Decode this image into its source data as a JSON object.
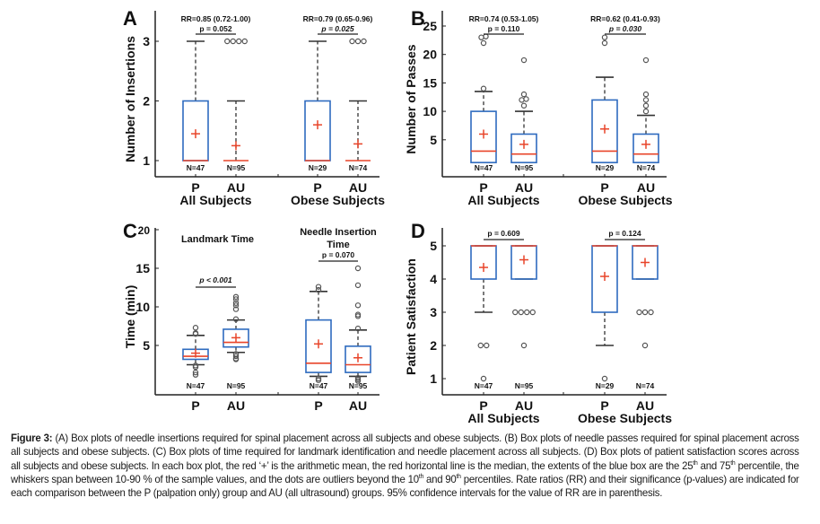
{
  "figure": {
    "caption_label": "Figure 3:",
    "caption_parts": [
      " (A) Box plots of needle insertions required for spinal placement across all subjects and obese subjects. (B) Box plots of needle passes required for spinal placement across all subjects and obese subjects. (C) Box plots of time required for landmark identification and needle placement across all subjects. (D) Box plots of patient satisfaction scores across all subjects and obese subjects. In each box plot, the red ‘+’ is the arithmetic mean, the red horizontal line is the median, the extents of the blue box are the 25",
      "th",
      " and 75",
      "th",
      " percentile, the whiskers span between 10-90 % of the sample values, and the dots are outliers beyond the 10",
      "th",
      " and 90",
      "th",
      " percentiles. Rate ratios (RR) and their significance (p-values) are indicated for each comparison between the P (palpation only) group and AU (all ultrasound) groups. 95% confidence intervals for the value of RR are in parenthesis."
    ]
  },
  "colors": {
    "box": "#2e6bbf",
    "median": "#e8452a",
    "mean": "#e8452a",
    "whisker": "#333333",
    "outlier": "#555555",
    "axis": "#222222",
    "text": "#111111"
  },
  "chart_data": [
    {
      "panel": "A",
      "type": "box",
      "ylabel": "Number of Insertions",
      "yticks": [
        1,
        2,
        3
      ],
      "ylim": [
        0.9,
        3.45
      ],
      "group_labels": [
        "All Subjects",
        "Obese Subjects"
      ],
      "boxes": [
        {
          "label": "P",
          "group": "All Subjects",
          "n": "N=47",
          "q1": 1,
          "median": 1,
          "q3": 2,
          "mean": 1.45,
          "whisker_low": 1,
          "whisker_high": 3,
          "outliers": []
        },
        {
          "label": "AU",
          "group": "All Subjects",
          "n": "N=95",
          "q1": 1,
          "median": 1,
          "q3": 1,
          "mean": 1.25,
          "whisker_low": 1,
          "whisker_high": 2,
          "outliers": [
            3,
            3,
            3,
            3
          ],
          "outlier_layout": "row"
        },
        {
          "label": "P",
          "group": "Obese Subjects",
          "n": "N=29",
          "q1": 1,
          "median": 1,
          "q3": 2,
          "mean": 1.6,
          "whisker_low": 1,
          "whisker_high": 3,
          "outliers": []
        },
        {
          "label": "AU",
          "group": "Obese Subjects",
          "n": "N=74",
          "q1": 1,
          "median": 1,
          "q3": 1,
          "mean": 1.28,
          "whisker_low": 1,
          "whisker_high": 2,
          "outliers": [
            3,
            3,
            3
          ],
          "outlier_layout": "row"
        }
      ],
      "annotations": [
        {
          "pair": [
            0,
            1
          ],
          "rr": "RR=0.85 (0.72-1.00)",
          "p": "p  = 0.052",
          "p_italic": false
        },
        {
          "pair": [
            2,
            3
          ],
          "rr": "RR=0.79 (0.65-0.96)",
          "p": "p = 0.025",
          "p_italic": true
        }
      ]
    },
    {
      "panel": "B",
      "type": "box",
      "ylabel": "Number of Passes",
      "yticks": [
        5,
        10,
        15,
        20,
        25
      ],
      "ylim": [
        -1,
        27.5
      ],
      "group_labels": [
        "All Subjects",
        "Obese Subjects"
      ],
      "boxes": [
        {
          "label": "P",
          "group": "All Subjects",
          "n": "N=47",
          "q1": 1,
          "median": 3,
          "q3": 10,
          "mean": 6,
          "whisker_low": 1,
          "whisker_high": 13.5,
          "outliers": [
            14,
            22,
            23,
            23
          ]
        },
        {
          "label": "AU",
          "group": "All Subjects",
          "n": "N=95",
          "q1": 1,
          "median": 2.5,
          "q3": 6,
          "mean": 4.2,
          "whisker_low": 1,
          "whisker_high": 10,
          "outliers": [
            11,
            12,
            12,
            13,
            19
          ]
        },
        {
          "label": "P",
          "group": "Obese Subjects",
          "n": "N=29",
          "q1": 1,
          "median": 3,
          "q3": 12,
          "mean": 6.9,
          "whisker_low": 1,
          "whisker_high": 16,
          "outliers": [
            22,
            23
          ]
        },
        {
          "label": "AU",
          "group": "Obese Subjects",
          "n": "N=74",
          "q1": 1,
          "median": 2.5,
          "q3": 6,
          "mean": 4.2,
          "whisker_low": 1,
          "whisker_high": 9.3,
          "outliers": [
            10,
            11,
            12,
            13,
            19
          ]
        }
      ],
      "annotations": [
        {
          "pair": [
            0,
            1
          ],
          "rr": "RR=0.74 (0.53-1.05)",
          "p": "p  = 0.110",
          "p_italic": false
        },
        {
          "pair": [
            2,
            3
          ],
          "rr": "RR=0.62 (0.41-0.93)",
          "p": "p = 0.030",
          "p_italic": true
        }
      ]
    },
    {
      "panel": "C",
      "type": "box",
      "ylabel": "Time (min)",
      "yticks": [
        5,
        10,
        15,
        20
      ],
      "ylim": [
        -2.2,
        20
      ],
      "group_labels": [
        "",
        ""
      ],
      "subtitles": [
        "Landmark Time",
        "Needle Insertion\nTime"
      ],
      "boxes": [
        {
          "label": "P",
          "group": "Landmark Time",
          "n": "N=47",
          "q1": 3.2,
          "median": 3.6,
          "q3": 4.5,
          "mean": 4.0,
          "whisker_low": 2.5,
          "whisker_high": 6.3,
          "outliers": [
            1.2,
            1.5,
            2.2,
            2.4,
            6.5,
            6.6,
            7.3
          ]
        },
        {
          "label": "AU",
          "group": "Landmark Time",
          "n": "N=95",
          "q1": 4.8,
          "median": 5.4,
          "q3": 7.1,
          "mean": 6.0,
          "whisker_low": 4.1,
          "whisker_high": 8.3,
          "outliers": [
            3.2,
            3.3,
            3.6,
            3.9,
            8.4,
            9.7,
            10.2,
            10.5,
            11.0,
            11.3
          ]
        },
        {
          "label": "P",
          "group": "Needle Insertion Time",
          "n": "N=47",
          "q1": 1.5,
          "median": 2.7,
          "q3": 8.3,
          "mean": 5.2,
          "whisker_low": 1.0,
          "whisker_high": 12.0,
          "outliers": [
            0.5,
            0.7,
            12.2,
            12.6
          ]
        },
        {
          "label": "AU",
          "group": "Needle Insertion Time",
          "n": "N=95",
          "q1": 1.5,
          "median": 2.5,
          "q3": 4.9,
          "mean": 3.4,
          "whisker_low": 1.0,
          "whisker_high": 7.0,
          "outliers": [
            0.4,
            0.6,
            0.8,
            7.2,
            8.8,
            9.0,
            10.2,
            12.8,
            15.0
          ]
        }
      ],
      "annotations": [
        {
          "pair": [
            0,
            1
          ],
          "rr": "",
          "p": "p  < 0.001",
          "p_italic": true
        },
        {
          "pair": [
            2,
            3
          ],
          "rr": "",
          "p": "p = 0.070",
          "p_italic": false
        }
      ]
    },
    {
      "panel": "D",
      "type": "box",
      "ylabel": "Patient Satisfaction",
      "yticks": [
        1,
        2,
        3,
        4,
        5
      ],
      "ylim": [
        0.5,
        5.5
      ],
      "group_labels": [
        "All Subjects",
        "Obese Subjects"
      ],
      "boxes": [
        {
          "label": "P",
          "group": "All Subjects",
          "n": "N=47",
          "q1": 4,
          "median": 5,
          "q3": 5,
          "mean": 4.35,
          "whisker_low": 3,
          "whisker_high": 5,
          "outliers": [
            1,
            2,
            2
          ],
          "outlier_layout": "row"
        },
        {
          "label": "AU",
          "group": "All Subjects",
          "n": "N=95",
          "q1": 4,
          "median": 5,
          "q3": 5,
          "mean": 4.58,
          "whisker_low": 4,
          "whisker_high": 5,
          "outliers": [
            2,
            3,
            3,
            3,
            3
          ],
          "outlier_layout": "row"
        },
        {
          "label": "P",
          "group": "Obese Subjects",
          "n": "N=29",
          "q1": 3,
          "median": 5,
          "q3": 5,
          "mean": 4.08,
          "whisker_low": 2,
          "whisker_high": 5,
          "outliers": [
            1
          ]
        },
        {
          "label": "AU",
          "group": "Obese Subjects",
          "n": "N=74",
          "q1": 4,
          "median": 5,
          "q3": 5,
          "mean": 4.5,
          "whisker_low": 4,
          "whisker_high": 5,
          "outliers": [
            2,
            3,
            3,
            3
          ],
          "outlier_layout": "row"
        }
      ],
      "annotations": [
        {
          "pair": [
            0,
            1
          ],
          "rr": "",
          "p": "p  = 0.609",
          "p_italic": false
        },
        {
          "pair": [
            2,
            3
          ],
          "rr": "",
          "p": "p = 0.124",
          "p_italic": false
        }
      ]
    }
  ]
}
